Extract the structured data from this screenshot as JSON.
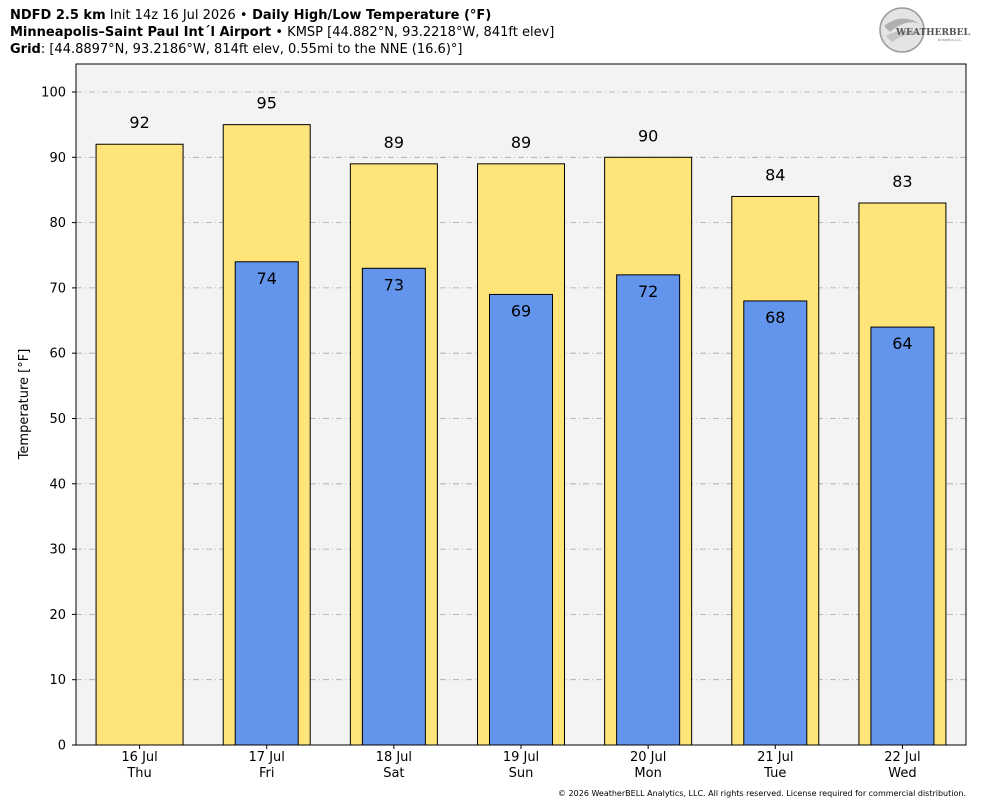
{
  "header": {
    "line1_bold": "NDFD 2.5 km",
    "line1_mid": " Init 14z 16 Jul 2026 ",
    "line1_bullet": "•",
    "line1_title": " Daily High/Low Temperature (°F)",
    "line2_bold": "Minneapolis–Saint Paul Int´l Airport",
    "line2_bullet": " • ",
    "line2_rest": "KMSP [44.882°N, 93.2218°W, 841ft elev]",
    "line3_bold": "Grid",
    "line3_rest": ": [44.8897°N, 93.2186°W, 814ft elev, 0.55mi to the NNE (16.6)°]"
  },
  "logo": {
    "text": "WEATHERBELL",
    "subtext": "Analytics LLC"
  },
  "footer": "© 2026 WeatherBELL Analytics, LLC. All rights reserved. License required for commercial distribution.",
  "chart_data": {
    "type": "bar",
    "ylabel": "Temperature [°F]",
    "ylim": [
      0,
      100
    ],
    "yticks": [
      0,
      10,
      20,
      30,
      40,
      50,
      60,
      70,
      80,
      90,
      100
    ],
    "grid": true,
    "categories": [
      {
        "date": "16 Jul",
        "day": "Thu"
      },
      {
        "date": "17 Jul",
        "day": "Fri"
      },
      {
        "date": "18 Jul",
        "day": "Sat"
      },
      {
        "date": "19 Jul",
        "day": "Sun"
      },
      {
        "date": "20 Jul",
        "day": "Mon"
      },
      {
        "date": "21 Jul",
        "day": "Tue"
      },
      {
        "date": "22 Jul",
        "day": "Wed"
      }
    ],
    "series": [
      {
        "values": [
          92,
          95,
          89,
          89,
          90,
          84,
          83
        ],
        "color": "#FFE47A"
      },
      {
        "values": [
          null,
          74,
          73,
          69,
          72,
          68,
          64
        ],
        "color": "#6495ED"
      }
    ]
  }
}
